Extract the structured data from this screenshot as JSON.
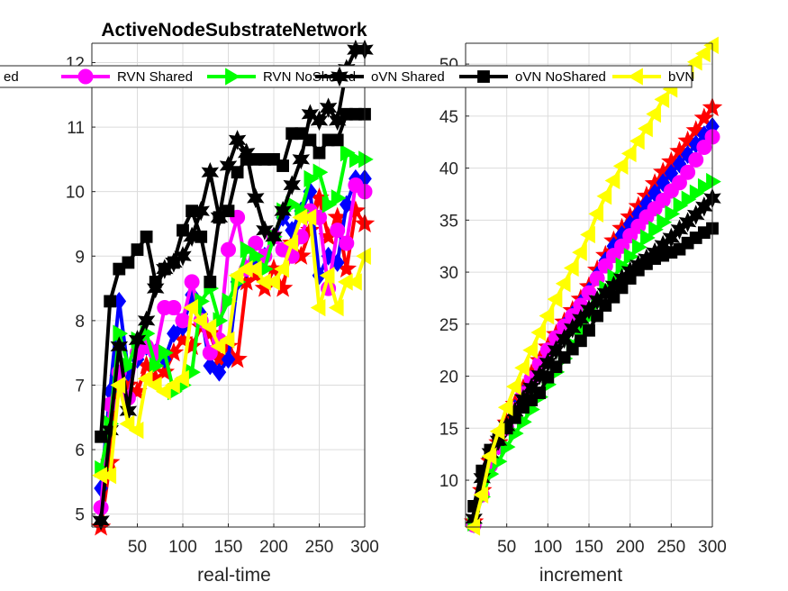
{
  "chart_data": [
    {
      "type": "line",
      "title": "ActiveNodeSubstrateNetwork",
      "xlabel": "real-time",
      "ylabel": "",
      "xlim": [
        0,
        300
      ],
      "ylim": [
        4.8,
        12.3
      ],
      "x_ticks": [
        50,
        100,
        150,
        200,
        250,
        300
      ],
      "y_ticks": [
        5,
        6,
        7,
        8,
        9,
        10,
        11,
        12
      ],
      "grid": true,
      "x": [
        10,
        20,
        30,
        40,
        50,
        60,
        70,
        80,
        90,
        100,
        110,
        120,
        130,
        140,
        150,
        160,
        170,
        180,
        190,
        200,
        210,
        220,
        230,
        240,
        250,
        260,
        270,
        280,
        290,
        300
      ],
      "series": [
        {
          "name": "",
          "color": "#ff0000",
          "marker": "star",
          "values": [
            4.8,
            5.8,
            7.1,
            7.0,
            6.9,
            7.3,
            7.1,
            7.2,
            7.5,
            7.7,
            7.6,
            7.9,
            7.8,
            7.4,
            7.6,
            7.4,
            8.6,
            8.7,
            8.5,
            8.8,
            8.5,
            9.2,
            9.0,
            9.4,
            9.9,
            9.3,
            9.6,
            8.8,
            9.7,
            9.5
          ]
        },
        {
          "name": "",
          "color": "#0000ff",
          "marker": "diamond",
          "values": [
            5.4,
            6.9,
            8.3,
            7.2,
            7.4,
            7.6,
            7.5,
            7.4,
            7.8,
            7.9,
            8.4,
            8.1,
            7.3,
            7.2,
            7.4,
            8.6,
            8.8,
            8.9,
            9.0,
            9.3,
            9.6,
            9.4,
            9.7,
            10.0,
            8.7,
            9.0,
            8.9,
            9.8,
            10.2,
            10.2
          ]
        },
        {
          "name": "RVN Shared",
          "color": "#ff00ff",
          "marker": "circle",
          "values": [
            5.1,
            6.7,
            7.2,
            6.8,
            7.5,
            7.6,
            7.5,
            8.2,
            8.2,
            8.0,
            8.6,
            8.0,
            7.5,
            7.7,
            9.1,
            9.6,
            8.8,
            9.2,
            9.0,
            9.3,
            9.1,
            9.0,
            9.3,
            9.7,
            9.6,
            8.5,
            9.4,
            9.2,
            10.1,
            10.0
          ]
        },
        {
          "name": "RVN NoShared",
          "color": "#00ff00",
          "marker": "triangle-right",
          "values": [
            5.7,
            6.4,
            7.8,
            7.3,
            7.7,
            7.8,
            7.3,
            7.5,
            6.9,
            7.0,
            7.2,
            8.3,
            8.5,
            8.0,
            8.3,
            8.6,
            9.1,
            9.0,
            8.8,
            9.3,
            9.7,
            9.8,
            9.7,
            10.2,
            10.3,
            9.8,
            9.9,
            10.6,
            10.5,
            10.5
          ]
        },
        {
          "name": "oVN Shared",
          "color": "#000000",
          "marker": "hexagram",
          "values": [
            4.9,
            6.3,
            7.6,
            6.6,
            7.7,
            8.0,
            8.5,
            8.8,
            8.9,
            9.0,
            9.3,
            9.7,
            10.3,
            9.6,
            10.4,
            10.8,
            10.6,
            9.9,
            9.4,
            9.3,
            9.7,
            10.1,
            10.5,
            11.2,
            11.1,
            11.3,
            11.1,
            11.9,
            12.2,
            12.2
          ]
        },
        {
          "name": "oVN NoShared",
          "color": "#000000",
          "marker": "square",
          "values": [
            6.2,
            8.3,
            8.8,
            8.9,
            9.1,
            9.3,
            8.6,
            8.8,
            8.9,
            9.4,
            9.7,
            9.3,
            8.6,
            9.6,
            9.7,
            10.3,
            10.5,
            10.5,
            10.5,
            10.5,
            10.4,
            10.9,
            10.9,
            10.8,
            10.6,
            10.8,
            10.8,
            11.2,
            11.2,
            11.2
          ]
        },
        {
          "name": "bVN",
          "color": "#ffff00",
          "marker": "triangle-left",
          "values": [
            5.6,
            5.6,
            7.0,
            6.4,
            6.3,
            7.1,
            7.0,
            6.9,
            7.0,
            7.1,
            8.2,
            8.0,
            7.9,
            7.6,
            7.7,
            8.7,
            8.8,
            8.8,
            8.6,
            8.6,
            8.8,
            9.2,
            9.6,
            9.6,
            8.2,
            8.7,
            8.2,
            8.6,
            8.6,
            9.0
          ]
        }
      ]
    },
    {
      "type": "line",
      "title": "",
      "xlabel": "increment",
      "ylabel": "",
      "xlim": [
        0,
        300
      ],
      "ylim": [
        5.5,
        52
      ],
      "x_ticks": [
        50,
        100,
        150,
        200,
        250,
        300
      ],
      "y_ticks": [
        10,
        15,
        20,
        25,
        30,
        35,
        40,
        45,
        50
      ],
      "grid": true,
      "x": [
        10,
        20,
        30,
        40,
        50,
        60,
        70,
        80,
        90,
        100,
        110,
        120,
        130,
        140,
        150,
        160,
        170,
        180,
        190,
        200,
        210,
        220,
        230,
        240,
        250,
        260,
        270,
        280,
        290,
        300
      ],
      "series": [
        {
          "name": "",
          "color": "#ff0000",
          "marker": "star",
          "values": [
            6.0,
            9.0,
            11.8,
            13.6,
            15.5,
            17.3,
            18.8,
            20.2,
            21.5,
            22.8,
            24.0,
            25.2,
            26.3,
            27.4,
            28.6,
            30.2,
            31.6,
            33.0,
            34.2,
            35.3,
            36.3,
            37.3,
            38.5,
            39.6,
            40.6,
            41.6,
            42.6,
            43.6,
            44.8,
            45.8
          ]
        },
        {
          "name": "",
          "color": "#0000ff",
          "marker": "diamond",
          "values": [
            5.8,
            8.7,
            11.5,
            13.3,
            15.1,
            16.9,
            18.3,
            19.7,
            21.1,
            22.4,
            23.6,
            24.8,
            25.9,
            27.0,
            28.2,
            29.7,
            31.1,
            32.5,
            33.6,
            34.6,
            35.6,
            36.6,
            37.6,
            38.6,
            39.5,
            40.4,
            41.3,
            42.3,
            43.2,
            44.0
          ]
        },
        {
          "name": "RVN Shared",
          "color": "#ff00ff",
          "marker": "circle",
          "values": [
            5.7,
            8.6,
            11.4,
            13.2,
            15.0,
            16.8,
            18.3,
            19.8,
            21.2,
            22.5,
            23.7,
            24.8,
            25.8,
            26.8,
            28.0,
            29.4,
            30.6,
            31.6,
            32.5,
            33.5,
            34.4,
            35.3,
            36.1,
            36.9,
            37.8,
            38.6,
            39.6,
            40.8,
            42.0,
            43.0
          ]
        },
        {
          "name": "RVN NoShared",
          "color": "#00ff00",
          "marker": "triangle-right",
          "values": [
            5.9,
            8.4,
            10.6,
            11.8,
            13.2,
            14.5,
            15.6,
            16.8,
            18.0,
            19.2,
            20.4,
            21.7,
            23.0,
            24.3,
            25.7,
            27.0,
            28.4,
            29.5,
            30.6,
            31.5,
            32.4,
            33.3,
            34.1,
            34.8,
            35.6,
            36.4,
            37.0,
            37.6,
            38.2,
            38.7
          ]
        },
        {
          "name": "oVN Shared",
          "color": "#000000",
          "marker": "hexagram",
          "values": [
            6.3,
            10.2,
            12.6,
            13.8,
            15.2,
            16.6,
            17.8,
            18.9,
            20.1,
            21.3,
            22.5,
            23.6,
            24.6,
            25.5,
            26.4,
            27.3,
            28.0,
            28.7,
            29.4,
            30.1,
            30.7,
            31.3,
            31.9,
            32.6,
            33.3,
            34.1,
            34.8,
            35.5,
            36.3,
            37.1
          ]
        },
        {
          "name": "oVN NoShared",
          "color": "#000000",
          "marker": "square",
          "values": [
            7.5,
            10.9,
            12.9,
            13.9,
            15.0,
            16.0,
            17.0,
            17.7,
            18.4,
            19.9,
            20.9,
            21.8,
            22.6,
            23.4,
            24.4,
            25.8,
            26.8,
            27.6,
            28.5,
            29.4,
            30.2,
            30.8,
            31.3,
            31.6,
            31.9,
            32.2,
            32.8,
            33.3,
            33.8,
            34.2
          ]
        },
        {
          "name": "bVN",
          "color": "#ffff00",
          "marker": "triangle-left",
          "values": [
            5.5,
            8.6,
            12.3,
            14.7,
            17.0,
            19.0,
            20.8,
            22.5,
            24.2,
            25.8,
            27.4,
            28.9,
            30.4,
            31.9,
            33.6,
            35.6,
            37.3,
            38.8,
            40.2,
            41.4,
            42.6,
            43.8,
            45.2,
            46.6,
            47.6,
            48.6,
            49.4,
            50.2,
            51.0,
            51.8
          ]
        }
      ]
    }
  ],
  "legend": {
    "placement": "top",
    "entries": [
      {
        "label": "ed",
        "color": "#0000ff",
        "marker": "diamond"
      },
      {
        "label": "RVN Shared",
        "color": "#ff00ff",
        "marker": "circle"
      },
      {
        "label": "RVN NoShared",
        "color": "#00ff00",
        "marker": "triangle-right"
      },
      {
        "label": "oVN Shared",
        "color": "#000000",
        "marker": "hexagram"
      },
      {
        "label": "oVN NoShared",
        "color": "#000000",
        "marker": "square"
      },
      {
        "label": "bVN",
        "color": "#ffff00",
        "marker": "triangle-left"
      }
    ]
  }
}
